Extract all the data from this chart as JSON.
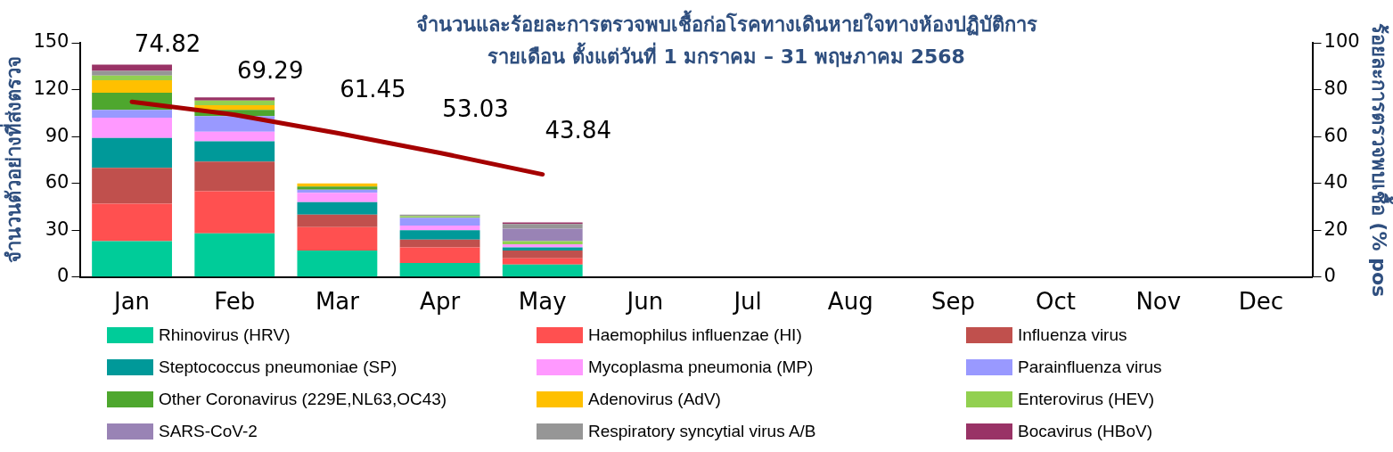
{
  "chart_data": {
    "type": "bar",
    "title": "จำนวนและร้อยละการตรวจพบเชื้อก่อโรคทางเดินหายใจทางห้องปฏิบัติการ",
    "subtitle": "รายเดือน ตั้งแต่วันที่ 1 มกราคม – 31 พฤษภาคม 2568",
    "ylabel": "จำนวนตัวอย่างที่ส่งตรวจ",
    "y2label": "ร้อยละการตรวจพบเชื้อ (% pos",
    "categories": [
      "Jan",
      "Feb",
      "Mar",
      "Apr",
      "May",
      "Jun",
      "Jul",
      "Aug",
      "Sep",
      "Oct",
      "Nov",
      "Dec"
    ],
    "stacked": true,
    "grid": false,
    "legend": "bottom",
    "ylim": [
      0,
      150
    ],
    "yticks": [
      0,
      30,
      60,
      90,
      120,
      150
    ],
    "y2lim": [
      0,
      100
    ],
    "y2ticks": [
      0,
      20,
      40,
      60,
      80,
      100
    ],
    "series": [
      {
        "name": "Rhinovirus (HRV)",
        "color": "#00cc99",
        "values": [
          23,
          28,
          17,
          9,
          8,
          null,
          null,
          null,
          null,
          null,
          null,
          null
        ]
      },
      {
        "name": "Haemophilus influenzae (HI)",
        "color": "#ff5050",
        "values": [
          24,
          27,
          15,
          10,
          4,
          null,
          null,
          null,
          null,
          null,
          null,
          null
        ]
      },
      {
        "name": "Influenza virus",
        "color": "#c0504d",
        "values": [
          23,
          19,
          8,
          5,
          5,
          null,
          null,
          null,
          null,
          null,
          null,
          null
        ]
      },
      {
        "name": "Steptococcus pneumoniae (SP)",
        "color": "#009999",
        "values": [
          19,
          13,
          8,
          6,
          2,
          null,
          null,
          null,
          null,
          null,
          null,
          null
        ]
      },
      {
        "name": "Mycoplasma pneumonia (MP)",
        "color": "#ff99ff",
        "values": [
          13,
          6,
          6,
          3,
          2,
          null,
          null,
          null,
          null,
          null,
          null,
          null
        ]
      },
      {
        "name": "Parainfluenza virus",
        "color": "#9999ff",
        "values": [
          5,
          10,
          2,
          5,
          0,
          null,
          null,
          null,
          null,
          null,
          null,
          null
        ]
      },
      {
        "name": "Other Coronavirus (229E,NL63,OC43)",
        "color": "#4ea72e",
        "values": [
          11,
          4,
          2,
          0,
          0,
          null,
          null,
          null,
          null,
          null,
          null,
          null
        ]
      },
      {
        "name": "Adenovirus (AdV)",
        "color": "#ffc000",
        "values": [
          8,
          3,
          2,
          0,
          0,
          null,
          null,
          null,
          null,
          null,
          null,
          null
        ]
      },
      {
        "name": "Enterovirus (HEV)",
        "color": "#92d050",
        "values": [
          3,
          3,
          0,
          1,
          2,
          null,
          null,
          null,
          null,
          null,
          null,
          null
        ]
      },
      {
        "name": "SARS-CoV-2",
        "color": "#9983b5",
        "values": [
          0,
          0,
          0,
          0,
          8,
          null,
          null,
          null,
          null,
          null,
          null,
          null
        ]
      },
      {
        "name": "Respiratory syncytial virus A/B",
        "color": "#969696",
        "values": [
          3,
          0,
          0,
          1,
          3,
          null,
          null,
          null,
          null,
          null,
          null,
          null
        ]
      },
      {
        "name": "Bocavirus (HBoV)",
        "color": "#993366",
        "values": [
          4,
          2,
          0,
          0,
          1,
          null,
          null,
          null,
          null,
          null,
          null,
          null
        ]
      },
      {
        "type": "line",
        "axis": "y2",
        "color": "#a50000",
        "marker": "none",
        "line_style": "solid",
        "values": [
          74.82,
          69.29,
          61.45,
          53.03,
          43.84,
          null,
          null,
          null,
          null,
          null,
          null,
          null
        ],
        "value_labels": [
          "74.82",
          "69.29",
          "61.45",
          "53.03",
          "43.84",
          null,
          null,
          null,
          null,
          null,
          null,
          null
        ]
      }
    ]
  }
}
